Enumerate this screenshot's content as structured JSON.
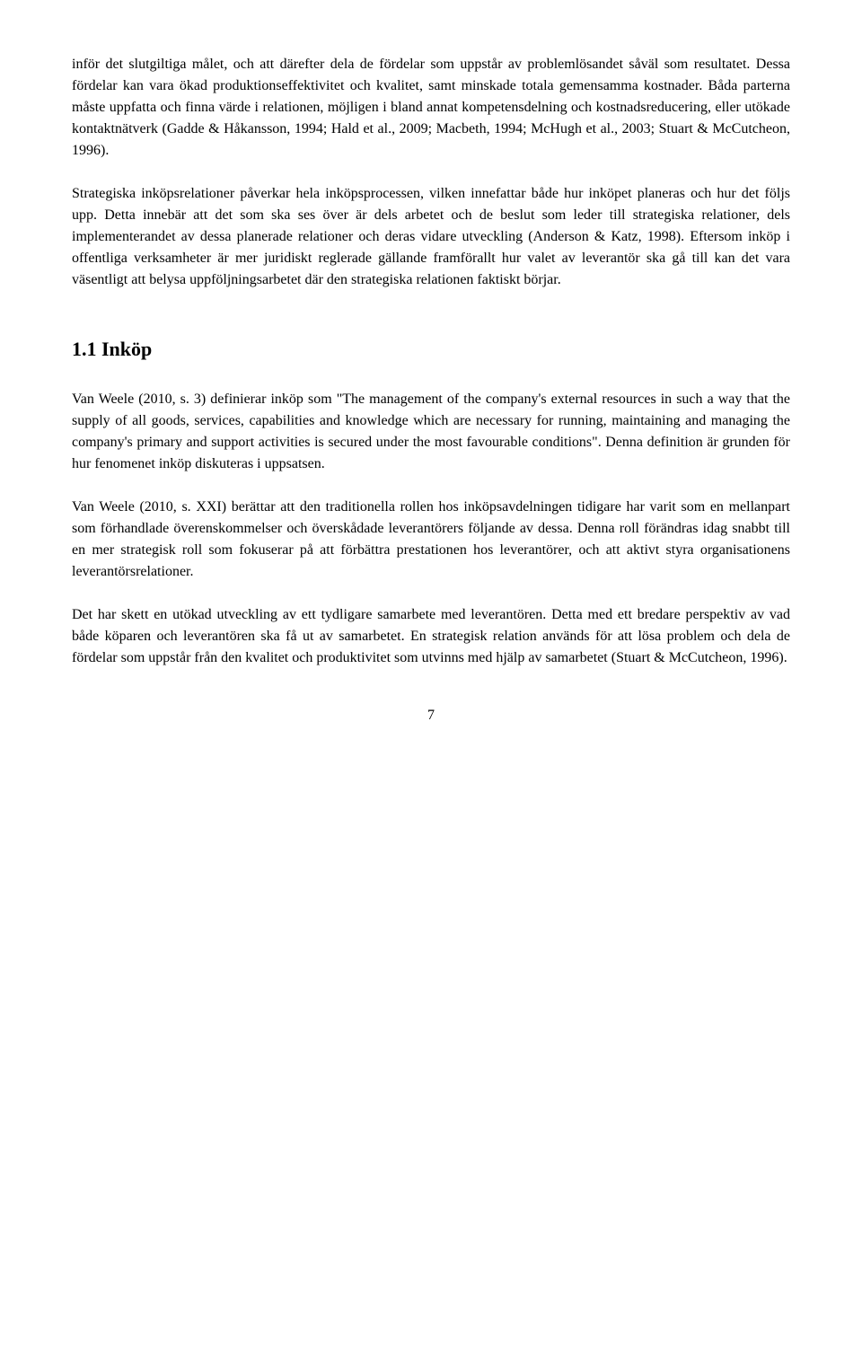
{
  "paragraphs": {
    "p1": "inför det slutgiltiga målet, och att därefter dela de fördelar som uppstår av problemlösandet såväl som resultatet. Dessa fördelar kan vara ökad produktionseffektivitet och kvalitet, samt minskade totala gemensamma kostnader. Båda parterna måste uppfatta och finna värde i relationen, möjligen i bland annat kompetensdelning och kostnadsreducering, eller utökade kontaktnätverk (Gadde & Håkansson, 1994; Hald et al., 2009; Macbeth, 1994; McHugh et al., 2003; Stuart & McCutcheon, 1996).",
    "p2": "Strategiska inköpsrelationer påverkar hela inköpsprocessen, vilken innefattar både hur inköpet planeras och hur det följs upp. Detta innebär att det som ska ses över är dels arbetet och de beslut som leder till strategiska relationer, dels implementerandet av dessa planerade relationer och deras vidare utveckling (Anderson & Katz, 1998). Eftersom inköp i offentliga verksamheter är mer juridiskt reglerade gällande framförallt hur valet av leverantör ska gå till kan det vara väsentligt att belysa uppföljningsarbetet där den strategiska relationen faktiskt börjar.",
    "heading": "1.1 Inköp",
    "p3": "Van Weele (2010, s. 3) definierar inköp som \"The management of the company's external resources in such a way that the supply of all goods, services, capabilities and knowledge which are necessary for running, maintaining and managing the company's primary and support activities is secured under the most favourable conditions\". Denna definition är grunden för hur fenomenet inköp diskuteras i uppsatsen.",
    "p4": "Van Weele (2010, s. XXI) berättar att den traditionella rollen hos inköpsavdelningen tidigare har varit som en mellanpart som förhandlade överenskommelser och överskådade leverantörers följande av dessa. Denna roll förändras idag snabbt till en mer strategisk roll som fokuserar på att förbättra prestationen hos leverantörer, och att aktivt styra organisationens leverantörsrelationer.",
    "p5": "Det har skett en utökad utveckling av ett tydligare samarbete med leverantören. Detta med ett bredare perspektiv av vad både köparen och leverantören ska få ut av samarbetet. En strategisk relation används för att lösa problem och dela de fördelar som uppstår från den kvalitet och produktivitet som utvinns med hjälp av samarbetet (Stuart & McCutcheon, 1996)."
  },
  "pageNumber": "7",
  "style": {
    "font_family": "Times New Roman",
    "body_fontsize": 16,
    "heading_fontsize": 22,
    "line_height": 1.5,
    "text_color": "#000000",
    "background_color": "#ffffff",
    "text_align": "justify"
  }
}
